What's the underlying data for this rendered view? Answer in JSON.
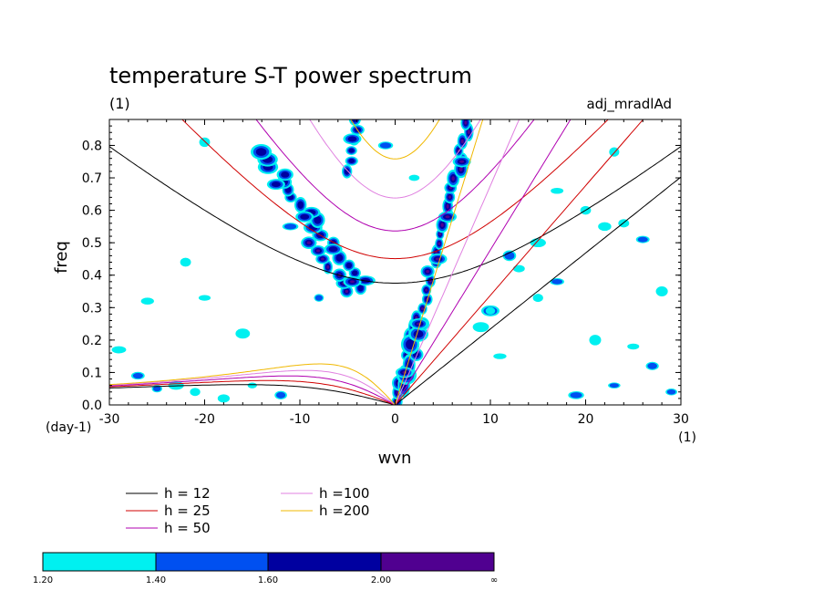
{
  "chart_data": {
    "type": "line",
    "title": "temperature S-T power spectrum",
    "subtitle_left": "(1)",
    "subtitle_right": "adj_mradlAd",
    "xlabel": "wvn",
    "ylabel": "freq",
    "x_unit_label": "(1)",
    "y_unit_label": "(day-1)",
    "xlim": [
      -30,
      30
    ],
    "ylim": [
      0,
      0.88
    ],
    "x_ticks": [
      -30,
      -20,
      -10,
      0,
      10,
      20,
      30
    ],
    "x_tick_labels": [
      "-30",
      "-20",
      "-10",
      "0",
      "10",
      "20",
      "30"
    ],
    "y_ticks": [
      0,
      0.1,
      0.2,
      0.3,
      0.4,
      0.5,
      0.6,
      0.7,
      0.8
    ],
    "y_tick_labels": [
      "0.0",
      "0.1",
      "0.2",
      "0.3",
      "0.4",
      "0.5",
      "0.6",
      "0.7",
      "0.8"
    ],
    "series": [
      {
        "name": "h = 12",
        "color": "#000000",
        "equivalent_depth": 12
      },
      {
        "name": "h = 25",
        "color": "#d00000",
        "equivalent_depth": 25
      },
      {
        "name": "h = 50",
        "color": "#b000b0",
        "equivalent_depth": 50
      },
      {
        "name": "h =100",
        "color": "#e080e0",
        "equivalent_depth": 100
      },
      {
        "name": "h =200",
        "color": "#f0b800",
        "equivalent_depth": 200
      }
    ],
    "legend_entries": [
      "h = 12",
      "h = 25",
      "h = 50",
      "h =100",
      "h =200"
    ],
    "colorbar": {
      "labels": [
        "1.20",
        "1.40",
        "1.60",
        "2.00",
        "∞"
      ],
      "colors": [
        "#00f0f0",
        "#0050f0",
        "#0000a0",
        "#500090"
      ]
    },
    "spectral_peaks": [
      {
        "x": -4.5,
        "y": 0.38,
        "level": 3
      },
      {
        "x": -6.5,
        "y": 0.48,
        "level": 2
      },
      {
        "x": -9.5,
        "y": 0.58,
        "level": 2
      },
      {
        "x": -12.5,
        "y": 0.68,
        "level": 2
      },
      {
        "x": -4.5,
        "y": 0.82,
        "level": 2
      },
      {
        "x": 1,
        "y": 0.1,
        "level": 3
      },
      {
        "x": 2.5,
        "y": 0.25,
        "level": 3
      },
      {
        "x": 4.5,
        "y": 0.45,
        "level": 3
      },
      {
        "x": 5.5,
        "y": 0.58,
        "level": 3
      },
      {
        "x": 7,
        "y": 0.75,
        "level": 3
      },
      {
        "x": 10,
        "y": 0.29,
        "level": 2
      }
    ]
  }
}
